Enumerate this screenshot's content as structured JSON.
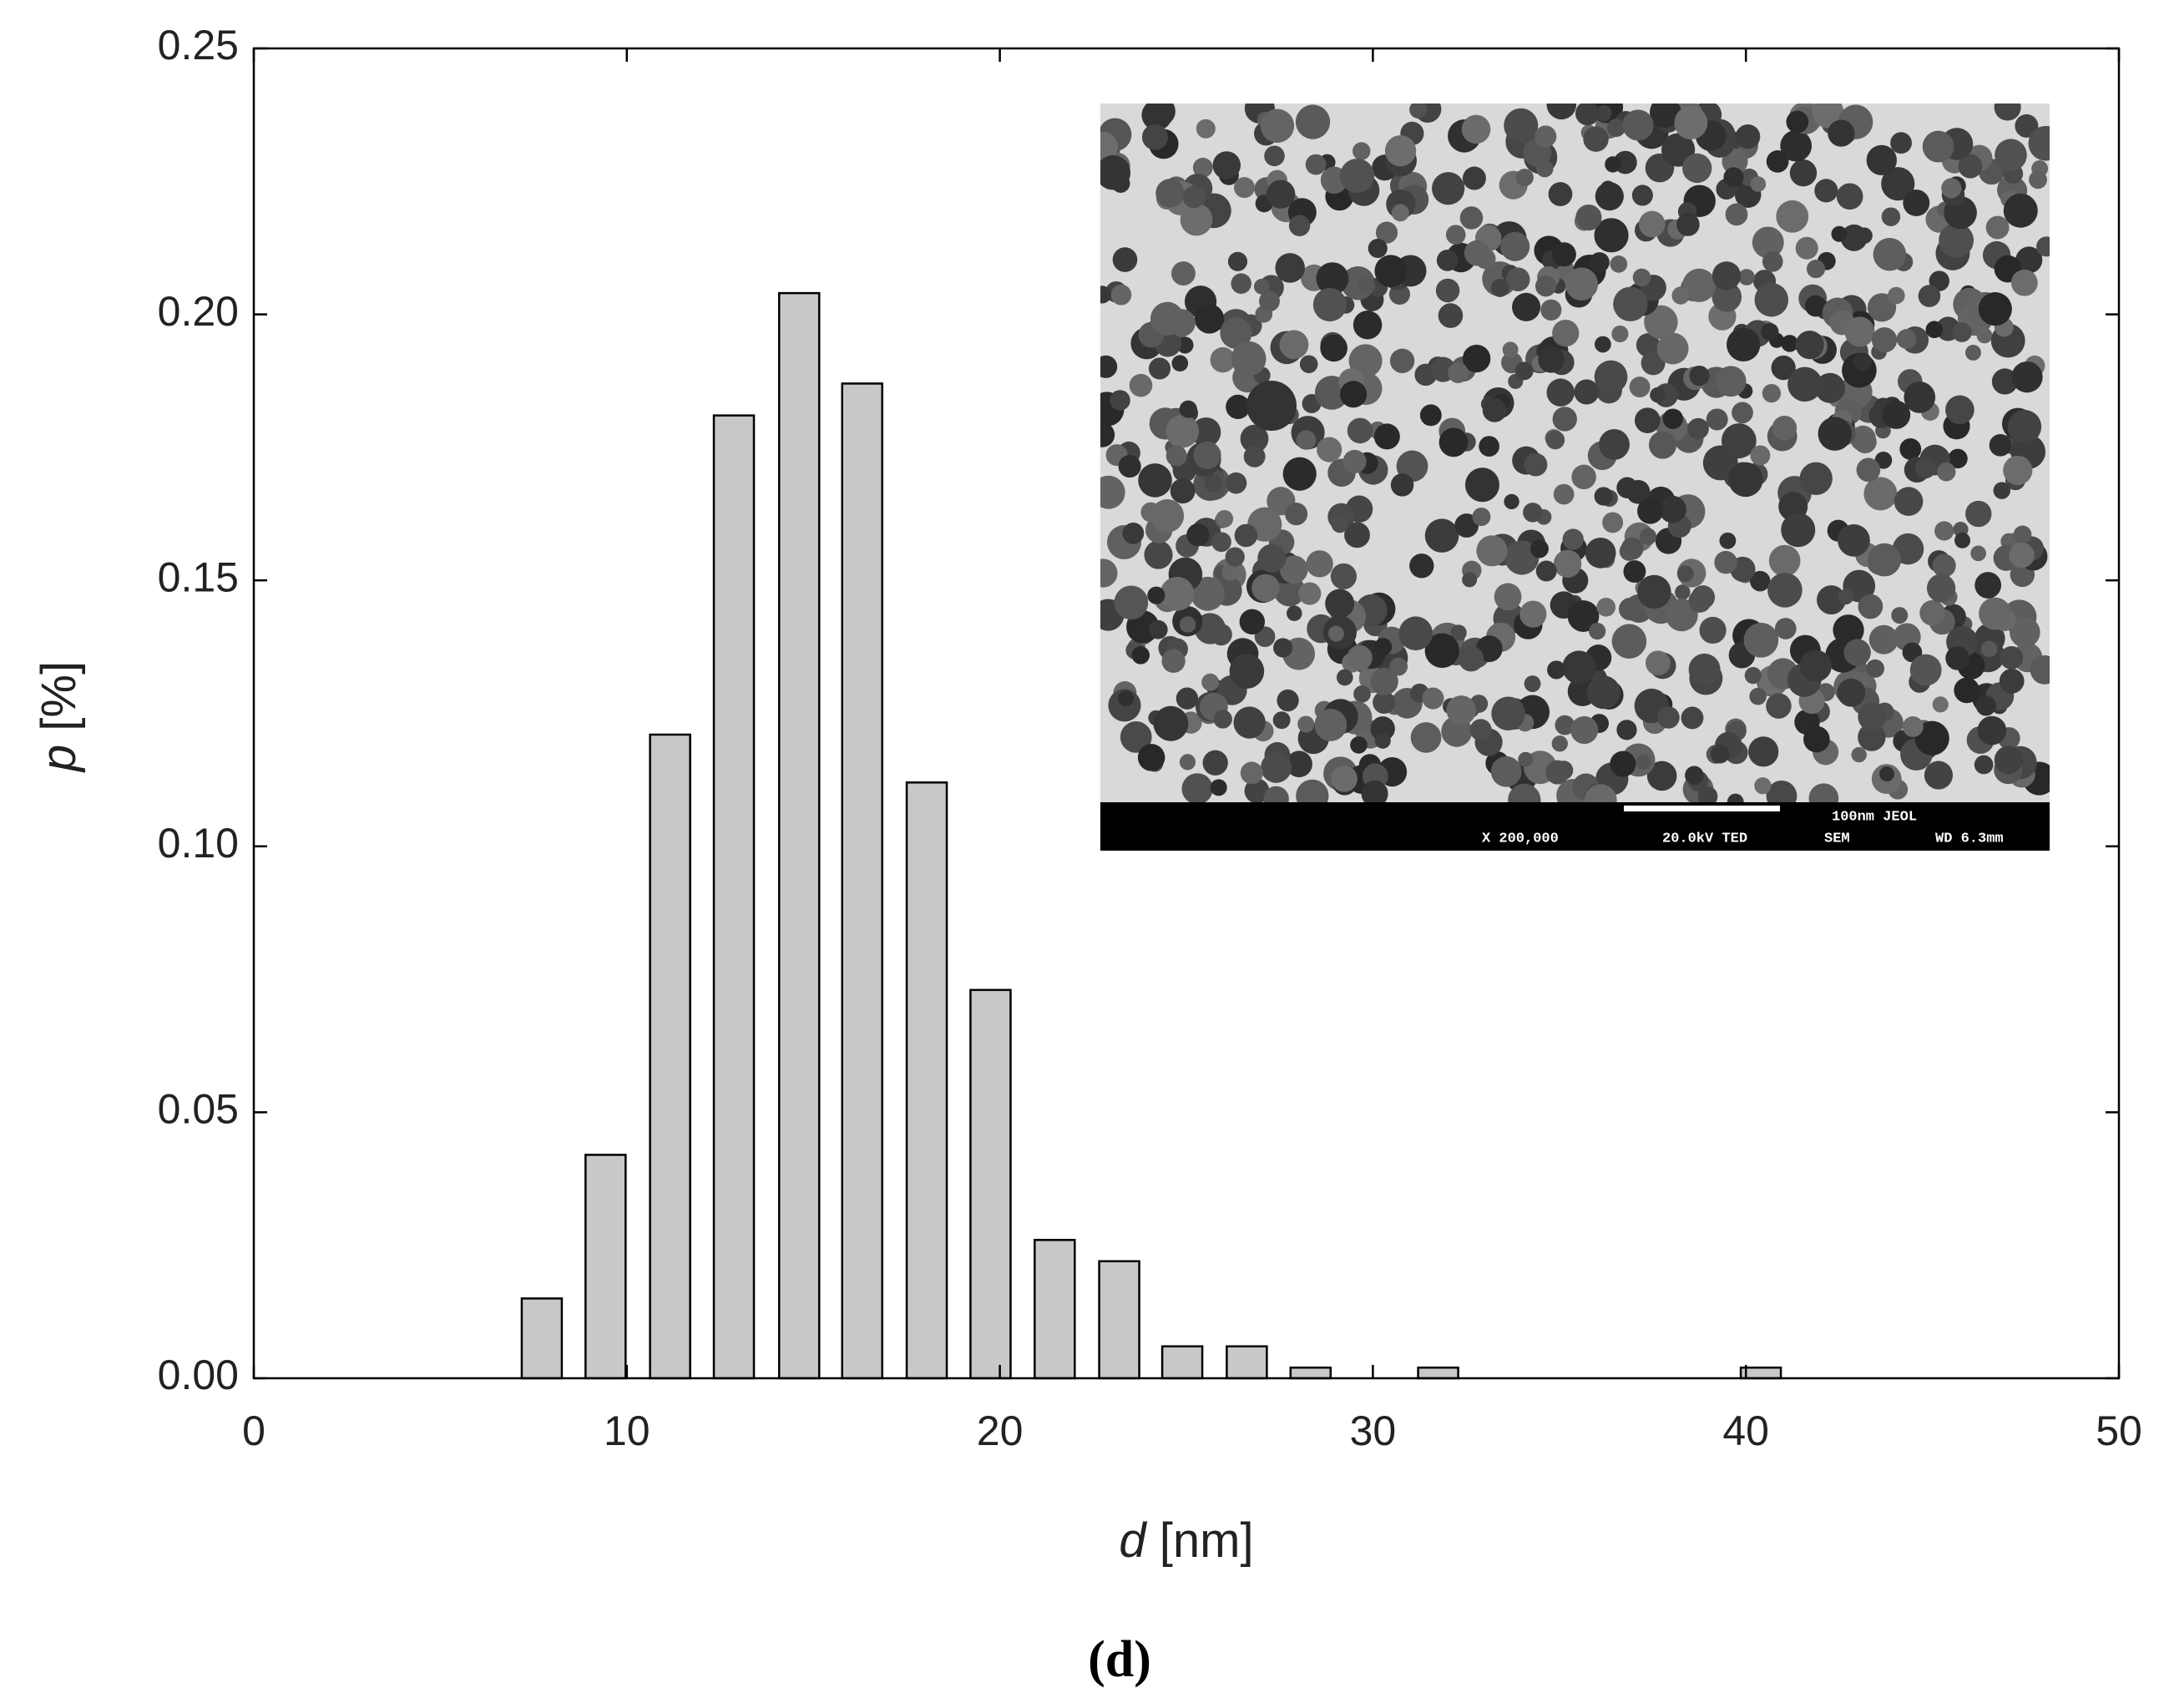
{
  "chart_data": {
    "type": "bar",
    "x_label_symbol": "d",
    "x_label_unit": "[nm]",
    "y_label_symbol": "p",
    "y_label_unit": "[%]",
    "x": [
      7.72,
      9.43,
      11.16,
      12.87,
      14.62,
      16.31,
      18.04,
      19.75,
      21.47,
      23.2,
      24.89,
      26.62,
      28.33,
      31.75,
      40.4
    ],
    "values": [
      0.015,
      0.042,
      0.121,
      0.181,
      0.204,
      0.187,
      0.112,
      0.073,
      0.026,
      0.022,
      0.006,
      0.006,
      0.002,
      0.002,
      0.002
    ],
    "color": "#c8c8c8",
    "xlim": [
      0,
      50
    ],
    "xticks": [
      0,
      10,
      20,
      30,
      40,
      50
    ],
    "ylim": [
      0,
      0.25
    ],
    "yticks": [
      {
        "value": 0,
        "label": "0.00"
      },
      0.05,
      {
        "value": 0.1,
        "label": "0.10"
      },
      0.15,
      {
        "value": 0.2,
        "label": "0.20"
      },
      0.25
    ],
    "grid": false
  },
  "inset": {
    "scale_text": "100nm JEOL",
    "magnification": "X 200,000",
    "voltage": "20.0kV TED",
    "mode": "SEM",
    "working_distance": "WD 6.3mm"
  },
  "panel_label": "(d)"
}
